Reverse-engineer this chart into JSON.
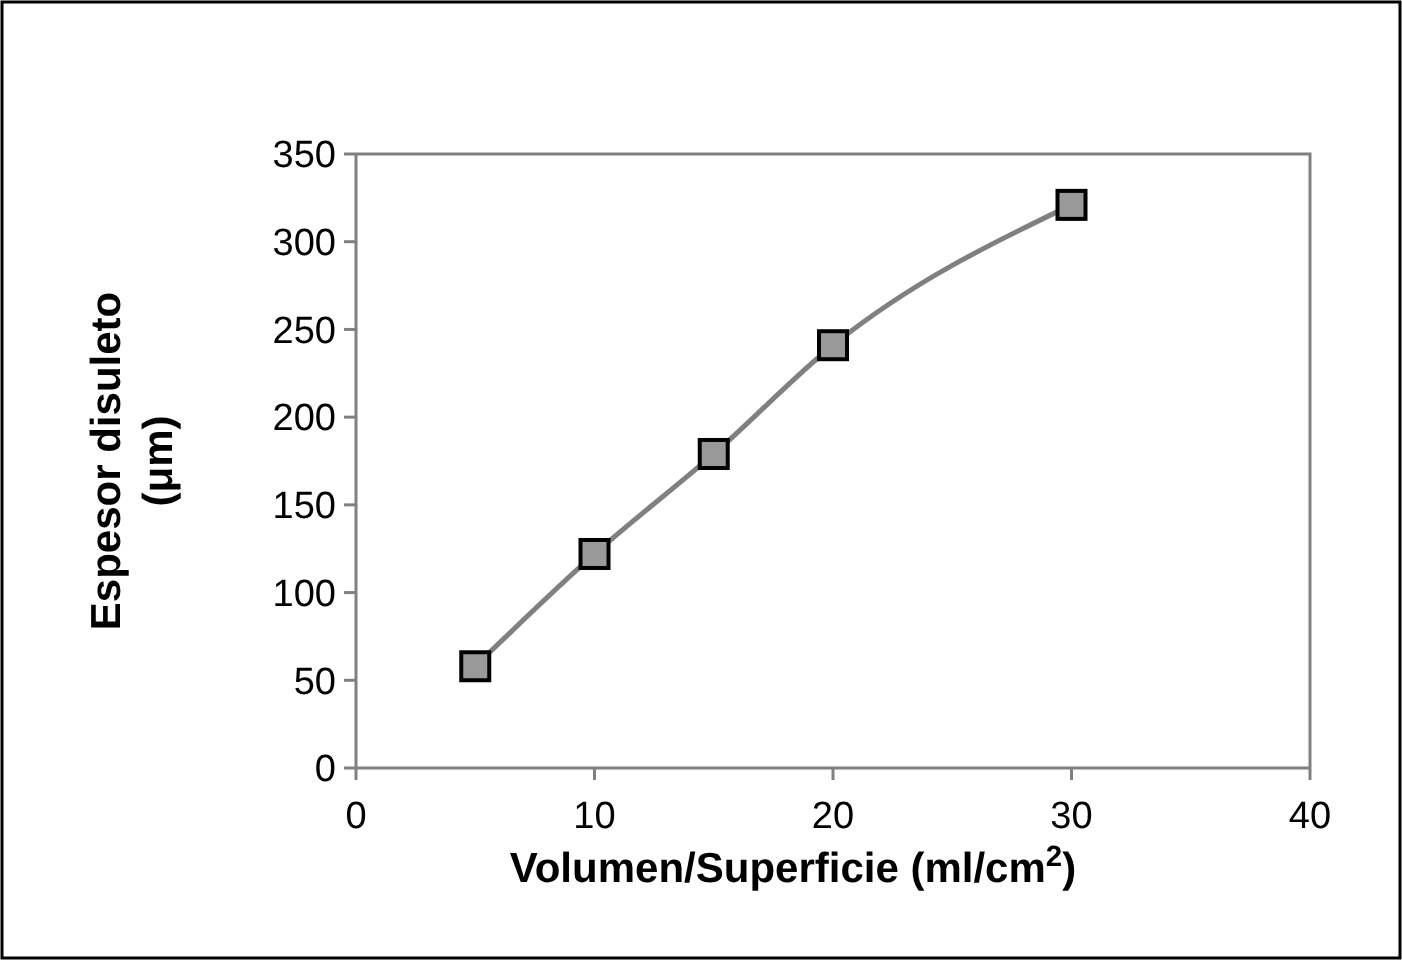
{
  "chart_data": {
    "type": "line",
    "xlabel": "Volumen/Superficie (ml/cm$^{2}$)",
    "ylabel": "Espesor disuleto\n(μm)",
    "x": [
      5,
      10,
      15,
      20,
      30
    ],
    "series": [
      {
        "color": "#808080",
        "values": [
          58,
          122,
          179,
          241,
          321
        ]
      }
    ],
    "marker": "square",
    "line_style": "solid",
    "grid": false,
    "xlim": [
      0,
      40
    ],
    "xticks": [
      0,
      10,
      20,
      30,
      40
    ],
    "ylim": [
      0,
      350
    ],
    "yticks": [
      0,
      50,
      100,
      150,
      200,
      250,
      300,
      350
    ]
  }
}
